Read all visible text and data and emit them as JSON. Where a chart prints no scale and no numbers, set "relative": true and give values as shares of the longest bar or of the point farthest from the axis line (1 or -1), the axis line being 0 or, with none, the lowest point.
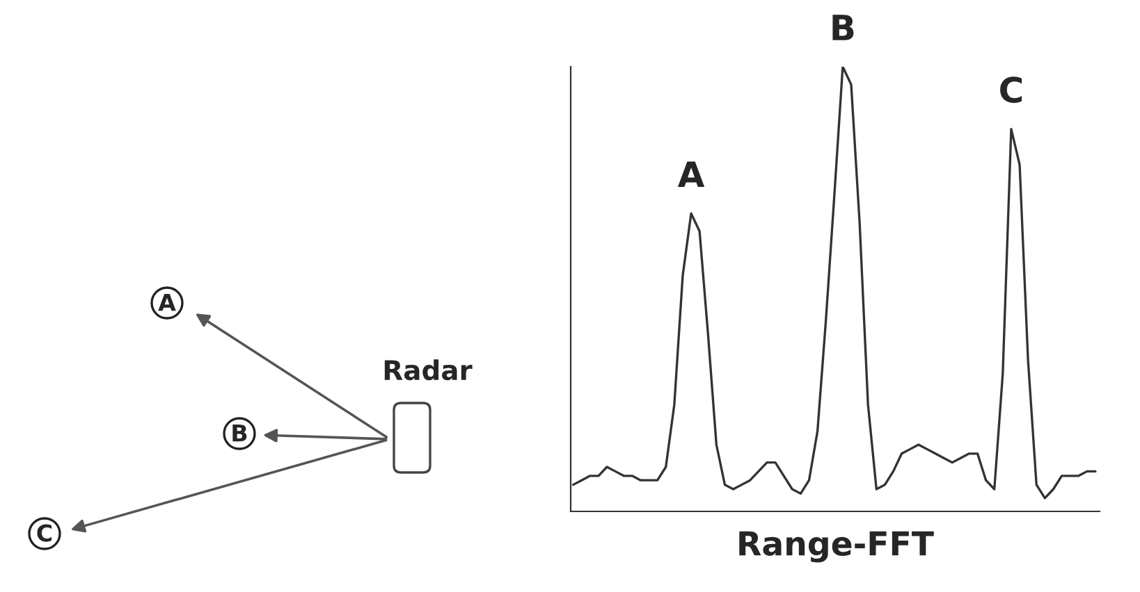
{
  "chart_data": {
    "type": "line",
    "relative": true,
    "xlabel": "Range-FFT",
    "tick_labels": false,
    "legend": false,
    "categories": [
      null,
      null,
      null,
      null,
      null,
      null,
      null,
      null,
      null,
      null,
      null,
      null,
      null,
      null,
      null,
      null,
      null,
      null,
      null,
      null,
      null,
      null,
      null,
      null,
      null,
      null,
      null,
      null,
      null,
      null,
      null,
      null,
      null,
      null,
      null,
      null,
      null,
      null,
      null,
      null,
      null,
      null,
      null,
      null,
      null,
      null,
      null,
      null,
      null,
      null,
      null,
      null,
      null,
      null,
      null,
      null,
      null,
      null,
      null,
      null,
      null,
      null,
      null
    ],
    "series": [
      {
        "color": "#333333",
        "values": [
          0.06,
          0.07,
          0.08,
          0.08,
          0.1,
          0.09,
          0.08,
          0.08,
          0.07,
          0.07,
          0.07,
          0.1,
          0.24,
          0.53,
          0.67,
          0.63,
          0.4,
          0.15,
          0.06,
          0.05,
          0.06,
          0.07,
          0.09,
          0.11,
          0.11,
          0.08,
          0.05,
          0.04,
          0.07,
          0.18,
          0.43,
          0.71,
          1.0,
          0.96,
          0.65,
          0.24,
          0.05,
          0.06,
          0.09,
          0.13,
          0.14,
          0.15,
          0.14,
          0.13,
          0.12,
          0.11,
          0.12,
          0.13,
          0.13,
          0.07,
          0.05,
          0.31,
          0.86,
          0.78,
          0.34,
          0.06,
          0.03,
          0.05,
          0.08,
          0.08,
          0.08,
          0.09,
          0.09
        ]
      }
    ],
    "annotations": [
      "A",
      "B",
      "C",
      "Radar",
      "A",
      "B",
      "C"
    ]
  }
}
